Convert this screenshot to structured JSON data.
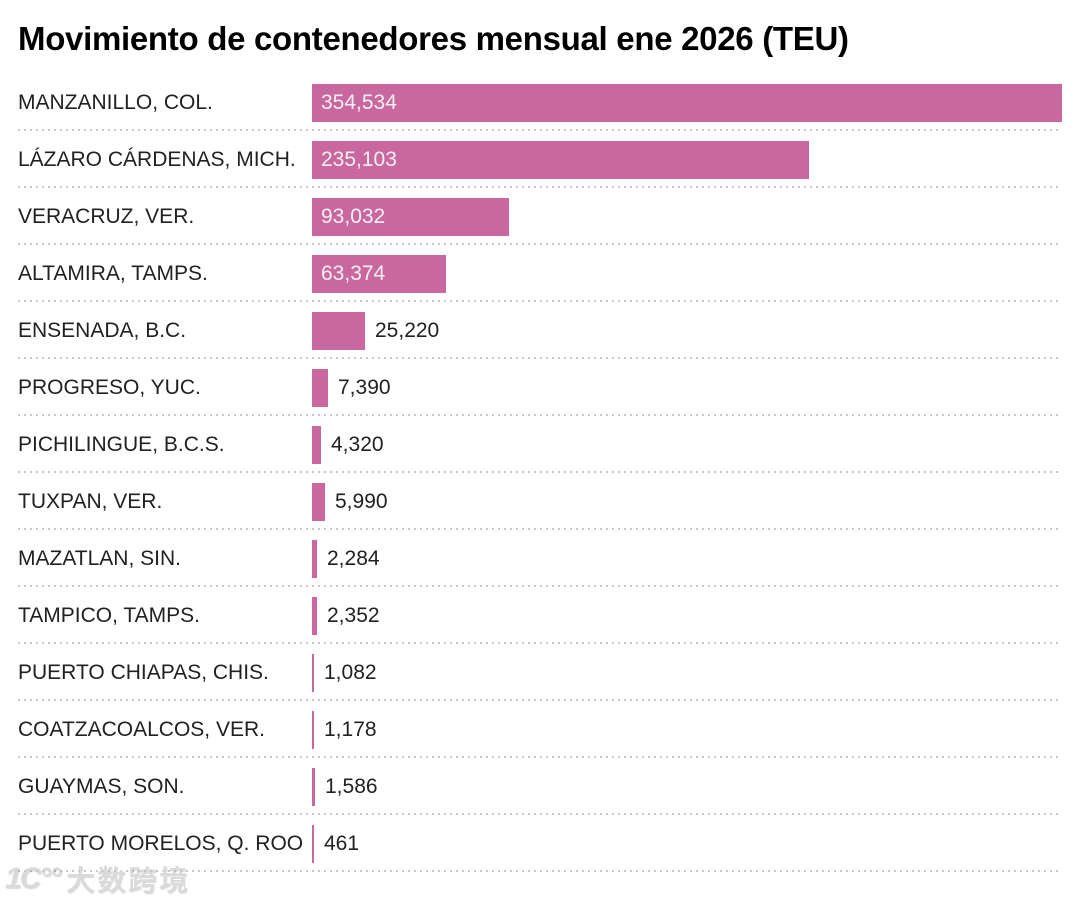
{
  "chart_data": {
    "type": "bar",
    "orientation": "horizontal",
    "title": "Movimiento de contenedores mensual ene 2026 (TEU)",
    "categories": [
      "MANZANILLO, COL.",
      "LÁZARO CÁRDENAS, MICH.",
      "VERACRUZ, VER.",
      "ALTAMIRA, TAMPS.",
      "ENSENADA, B.C.",
      "PROGRESO, YUC.",
      "PICHILINGUE, B.C.S.",
      "TUXPAN, VER.",
      "MAZATLAN, SIN.",
      "TAMPICO, TAMPS.",
      "PUERTO CHIAPAS, CHIS.",
      "COATZACOALCOS, VER.",
      "GUAYMAS, SON.",
      "PUERTO MORELOS, Q. ROO"
    ],
    "values": [
      354534,
      235103,
      93032,
      63374,
      25220,
      7390,
      4320,
      5990,
      2284,
      2352,
      1082,
      1178,
      1586,
      461
    ],
    "value_labels": [
      "354,534",
      "235,103",
      "93,032",
      "63,374",
      "25,220",
      "7,390",
      "4,320",
      "5,990",
      "2,284",
      "2,352",
      "1,082",
      "1,178",
      "1,586",
      "461"
    ],
    "xlim": [
      0,
      354534
    ],
    "bar_color": "#c9689e",
    "label_color": "#212121",
    "value_inside_color": "#f9eff6",
    "grid": false,
    "legend": false
  },
  "watermark": {
    "logo_text": "1C°°",
    "text": "大数跨境"
  }
}
